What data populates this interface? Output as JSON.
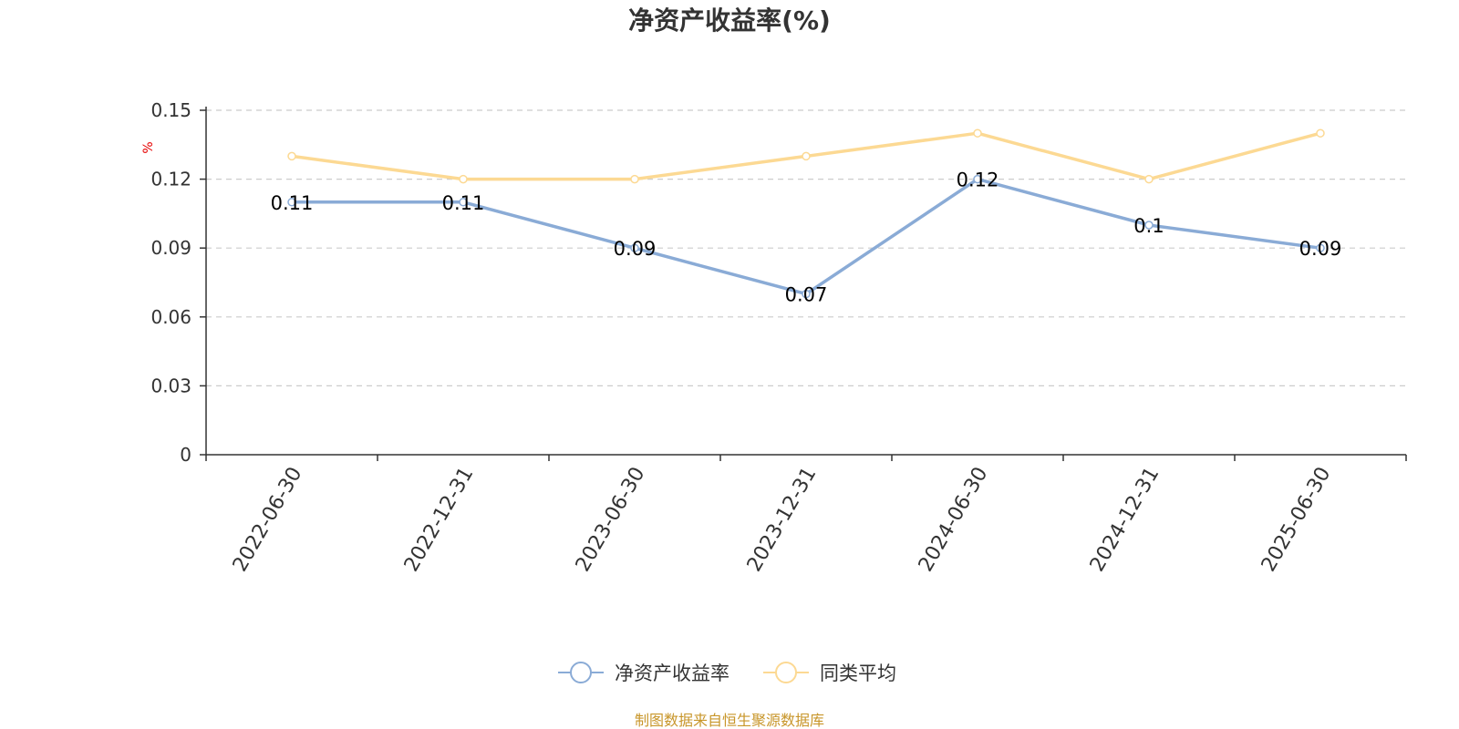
{
  "chart_data": {
    "type": "line",
    "title": "净资产收益率(%)",
    "y_unit": "%",
    "categories": [
      "2022-06-30",
      "2022-12-31",
      "2023-06-30",
      "2023-12-31",
      "2024-06-30",
      "2024-12-31",
      "2025-06-30"
    ],
    "ylim": [
      0,
      0.15
    ],
    "yticks": [
      0,
      0.03,
      0.06,
      0.09,
      0.12,
      0.15
    ],
    "ytick_labels": [
      "0",
      "0.03",
      "0.06",
      "0.09",
      "0.12",
      "0.15"
    ],
    "grid": "horizontal dashed",
    "legend_position": "bottom",
    "series": [
      {
        "name": "净资产收益率",
        "color": "#8aabd6",
        "values": [
          0.11,
          0.11,
          0.09,
          0.07,
          0.12,
          0.1,
          0.09
        ],
        "data_labels": [
          "0.11",
          "0.11",
          "0.09",
          "0.07",
          "0.12",
          "0.1",
          "0.09"
        ]
      },
      {
        "name": "同类平均",
        "color": "#fcd993",
        "values": [
          0.13,
          0.12,
          0.12,
          0.13,
          0.14,
          0.12,
          0.14
        ]
      }
    ]
  },
  "source": "制图数据来自恒生聚源数据库"
}
